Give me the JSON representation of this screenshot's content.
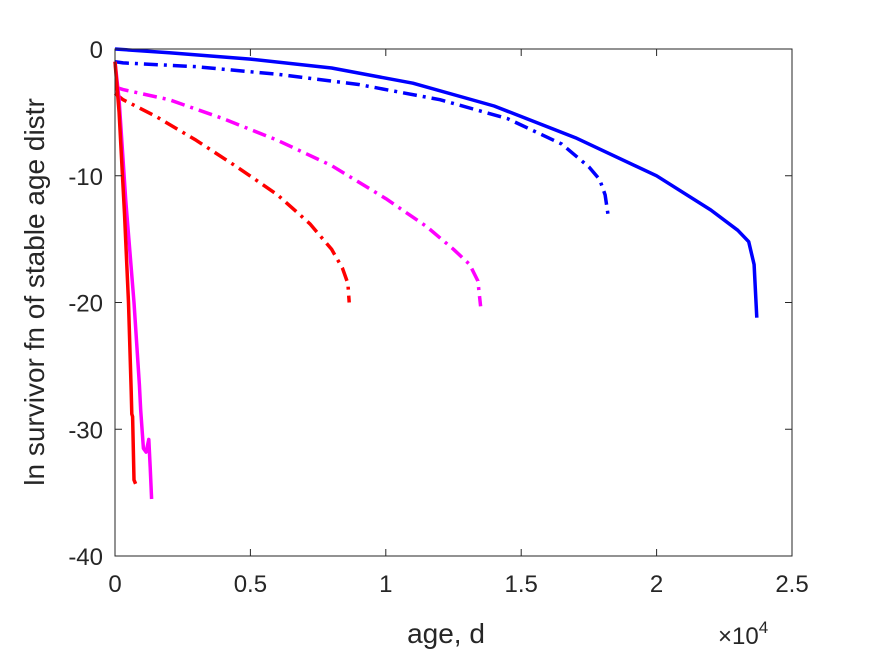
{
  "chart_data": {
    "type": "line",
    "xlabel": "age, d",
    "ylabel": "ln survivor fn of stable age distr",
    "x_multiplier": "×10",
    "x_multiplier_exp": "4",
    "xlim": [
      0,
      25000
    ],
    "ylim": [
      -40,
      0
    ],
    "xticks": [
      0,
      5000,
      10000,
      15000,
      20000,
      25000
    ],
    "xtick_labels": [
      "0",
      "0.5",
      "1",
      "1.5",
      "2",
      "2.5"
    ],
    "yticks": [
      0,
      -10,
      -20,
      -30,
      -40
    ],
    "ytick_labels": [
      "0",
      "-10",
      "-20",
      "-30",
      "-40"
    ],
    "grid": false,
    "series": [
      {
        "color": "#0000ff",
        "style": "solid",
        "x": [
          0,
          2000,
          5000,
          8000,
          11000,
          14000,
          17000,
          20000,
          22000,
          23000,
          23400,
          23600,
          23700
        ],
        "y": [
          0,
          -0.3,
          -0.8,
          -1.5,
          -2.7,
          -4.5,
          -7.0,
          -10.0,
          -12.7,
          -14.3,
          -15.2,
          -17.0,
          -21.2
        ]
      },
      {
        "color": "#0000ff",
        "style": "dashdot",
        "x": [
          0,
          300,
          3000,
          6000,
          9000,
          12000,
          14500,
          16500,
          17500,
          17900,
          18100,
          18200
        ],
        "y": [
          -1.0,
          -1.1,
          -1.4,
          -2.0,
          -2.8,
          -4.0,
          -5.5,
          -7.5,
          -9.3,
          -10.3,
          -11.5,
          -13.0
        ]
      },
      {
        "color": "#ff00ff",
        "style": "dashdot",
        "x": [
          0,
          300,
          2000,
          4000,
          6000,
          8000,
          10000,
          11500,
          12500,
          13100,
          13400,
          13500
        ],
        "y": [
          -3.0,
          -3.2,
          -4.0,
          -5.5,
          -7.2,
          -9.2,
          -11.8,
          -14.0,
          -15.8,
          -17.0,
          -18.3,
          -20.3
        ]
      },
      {
        "color": "#ff0000",
        "style": "dashdot",
        "x": [
          0,
          300,
          1500,
          3000,
          4500,
          6000,
          7200,
          8000,
          8400,
          8600,
          8650
        ],
        "y": [
          -3.5,
          -4.0,
          -5.3,
          -7.2,
          -9.3,
          -11.5,
          -13.8,
          -15.8,
          -17.3,
          -18.5,
          -20.0
        ]
      },
      {
        "color": "#ff00ff",
        "style": "solid",
        "x": [
          0,
          150,
          400,
          700,
          900,
          950,
          1050,
          1150,
          1250,
          1300,
          1350
        ],
        "y": [
          -1.0,
          -4.0,
          -12.0,
          -20.0,
          -26.5,
          -28.5,
          -31.5,
          -31.8,
          -30.8,
          -33.0,
          -35.5
        ]
      },
      {
        "color": "#ff0000",
        "style": "solid",
        "x": [
          0,
          150,
          350,
          500,
          600,
          620,
          650,
          700,
          760
        ],
        "y": [
          -1.0,
          -5.0,
          -13.0,
          -20.0,
          -27.0,
          -28.8,
          -29.0,
          -34.0,
          -34.3
        ]
      }
    ]
  }
}
